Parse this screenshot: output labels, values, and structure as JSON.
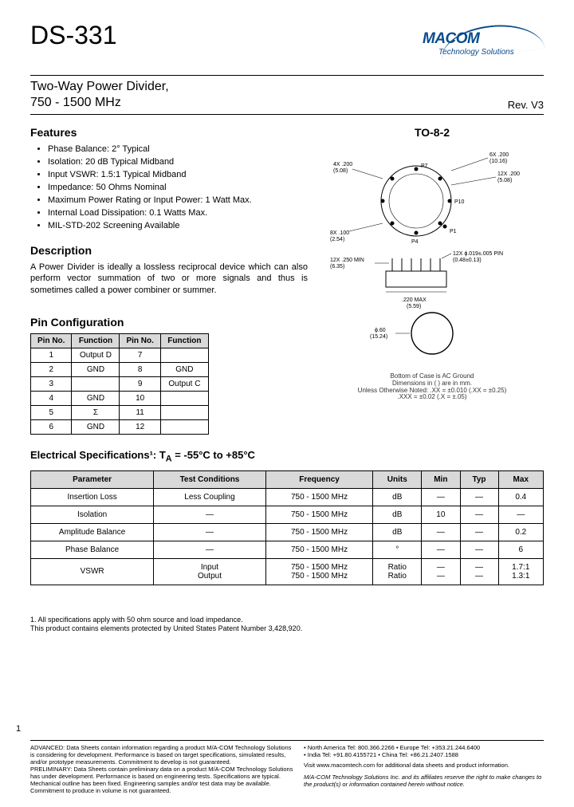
{
  "header": {
    "part_number": "DS-331",
    "logo_text": "MACOM",
    "logo_sub": "Technology Solutions",
    "logo_color": "#0a4b8c"
  },
  "subtitle": {
    "line1": "Two-Way Power Divider,",
    "line2": "750 - 1500 MHz",
    "rev": "Rev. V3"
  },
  "features": {
    "heading": "Features",
    "items": [
      "Phase Balance: 2° Typical",
      "Isolation: 20 dB Typical Midband",
      "Input VSWR: 1.5:1 Typical Midband",
      "Impedance: 50 Ohms Nominal",
      "Maximum Power Rating or Input Power: 1 Watt Max.",
      "Internal Load Dissipation: 0.1 Watts Max.",
      "MIL-STD-202 Screening Available"
    ]
  },
  "package": {
    "heading": "TO-8-2",
    "caption_line1": "Bottom of Case is AC Ground",
    "caption_line2": "Dimensions in ( ) are in mm.",
    "caption_line3": "Unless Otherwise Noted: .XX = ±0.010 (.XX = ±0.25)",
    "caption_line4": ".XXX = ±0.02 (.X = ±.05)"
  },
  "description": {
    "heading": "Description",
    "text": "A Power Divider is ideally a lossless reciprocal device which can also perform vector summation of two or more signals and thus is sometimes called a power combiner or summer."
  },
  "pin_config": {
    "heading": "Pin Configuration",
    "headers": [
      "Pin No.",
      "Function",
      "Pin No.",
      "Function"
    ],
    "rows": [
      [
        "1",
        "Output D",
        "7",
        ""
      ],
      [
        "2",
        "GND",
        "8",
        "GND"
      ],
      [
        "3",
        "",
        "9",
        "Output C"
      ],
      [
        "4",
        "GND",
        "10",
        ""
      ],
      [
        "5",
        "Σ",
        "11",
        ""
      ],
      [
        "6",
        "GND",
        "12",
        ""
      ]
    ]
  },
  "elec": {
    "heading": "Electrical Specifications¹:  T",
    "heading_sub": "A",
    "heading_tail": " = -55°C to +85°C",
    "headers": [
      "Parameter",
      "Test Conditions",
      "Frequency",
      "Units",
      "Min",
      "Typ",
      "Max"
    ],
    "rows": [
      {
        "param": "Insertion Loss",
        "cond": "Less Coupling",
        "freq": "750 - 1500 MHz",
        "units": "dB",
        "min": "—",
        "typ": "—",
        "max": "0.4"
      },
      {
        "param": "Isolation",
        "cond": "—",
        "freq": "750 - 1500 MHz",
        "units": "dB",
        "min": "10",
        "typ": "—",
        "max": "—"
      },
      {
        "param": "Amplitude Balance",
        "cond": "—",
        "freq": "750 - 1500 MHz",
        "units": "dB",
        "min": "—",
        "typ": "—",
        "max": "0.2"
      },
      {
        "param": "Phase Balance",
        "cond": "—",
        "freq": "750 - 1500 MHz",
        "units": "°",
        "min": "—",
        "typ": "—",
        "max": "6"
      },
      {
        "param": "VSWR",
        "cond": "Input\nOutput",
        "freq": "750 - 1500 MHz\n750 - 1500 MHz",
        "units": "Ratio\nRatio",
        "min": "—\n—",
        "typ": "—\n—",
        "max": "1.7:1\n1.3:1"
      }
    ]
  },
  "footnotes": {
    "line1": "1.  All specifications apply with 50 ohm source and load impedance.",
    "line2": "This product contains elements protected by United States Patent Number 3,428,920."
  },
  "page_number": "1",
  "footer": {
    "left": "ADVANCED: Data Sheets contain information regarding a product M/A-COM Technology Solutions is considering for development. Performance is based on target specifications, simulated results, and/or prototype measurements. Commitment to develop is not guaranteed.\nPRELIMINARY: Data Sheets contain preliminary data on a product M/A-COM Technology Solutions has under development. Performance is based on engineering tests. Specifications are typical. Mechanical outline has been fixed. Engineering samples and/or test data may be available. Commitment to produce in volume is not guaranteed.",
    "contacts": "• North America  Tel: 800.366.2266   • Europe  Tel: +353.21.244.6400\n• India  Tel: +91.80.4155721              • China  Tel: +86.21.2407.1588",
    "visit": "Visit www.macomtech.com for additional data sheets and product information.",
    "disclaimer": "M/A-COM Technology Solutions Inc. and its affiliates reserve the right to make changes to the product(s) or information contained herein without notice."
  },
  "colors": {
    "header_bg": "#d9d9d9",
    "border": "#000000",
    "text": "#000000"
  }
}
